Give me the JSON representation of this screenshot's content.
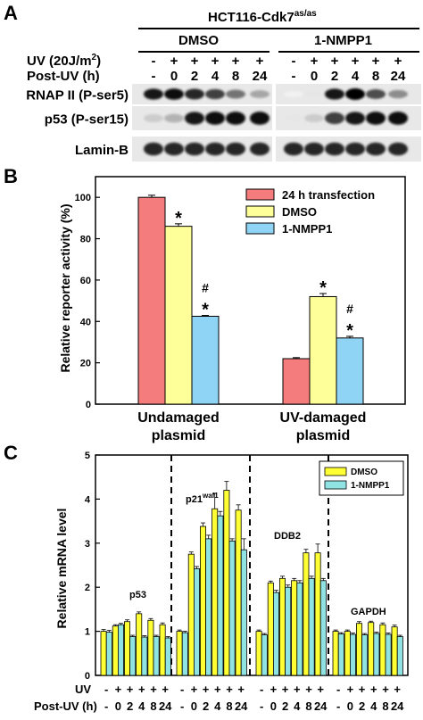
{
  "panel_a": {
    "label": "A",
    "cell_line": "HCT116-Cdk7",
    "cell_line_superscript": "as/as",
    "groups": [
      "DMSO",
      "1-NMPP1"
    ],
    "uv_row_label": "UV (20J/m",
    "uv_row_sup": "2",
    "uv_row_end": ")",
    "post_uv_label": "Post-UV (h)",
    "uv_signs": [
      "-",
      "+",
      "+",
      "+",
      "+",
      "+",
      "-",
      "+",
      "+",
      "+",
      "+",
      "+"
    ],
    "post_uv_values": [
      "-",
      "0",
      "2",
      "4",
      "8",
      "24",
      "-",
      "0",
      "2",
      "4",
      "8",
      "24"
    ],
    "blots": [
      {
        "label": "RNAP II (P-ser5)",
        "intensity": [
          0.9,
          0.95,
          0.85,
          0.75,
          0.55,
          0.35,
          0.05,
          0.1,
          0.9,
          1.0,
          0.7,
          0.45
        ]
      },
      {
        "label": "p53 (P-ser15)",
        "intensity": [
          0.2,
          0.3,
          0.9,
          0.95,
          0.95,
          0.95,
          0.1,
          0.2,
          0.75,
          0.9,
          0.95,
          0.95
        ]
      },
      {
        "label": "Lamin-B",
        "intensity": [
          0.85,
          0.85,
          0.85,
          0.85,
          0.85,
          0.85,
          0.85,
          0.85,
          0.85,
          0.85,
          0.85,
          0.85
        ]
      }
    ]
  },
  "panel_b": {
    "label": "B"
  },
  "panel_c": {
    "label": "C",
    "uv_label": "UV",
    "post_uv_label": "Post-UV (h)",
    "uv_signs": [
      "-",
      "+",
      "+",
      "+",
      "+",
      "+"
    ],
    "post_uv_values": [
      "-",
      "0",
      "2",
      "4",
      "8",
      "24"
    ]
  },
  "chart_data": [
    {
      "type": "bar",
      "ylabel": "Relative reporter activity (%)",
      "ylim": [
        0,
        110
      ],
      "yticks": [
        0,
        20,
        40,
        60,
        80,
        100
      ],
      "categories": [
        "Undamaged plasmid",
        "UV-damaged plasmid"
      ],
      "category_lines": [
        [
          "Undamaged",
          "plasmid"
        ],
        [
          "UV-damaged",
          "plasmid"
        ]
      ],
      "series": [
        {
          "name": "24 h transfection",
          "values": [
            100,
            22
          ],
          "errors": [
            1.0,
            0.5
          ],
          "color": "#f47c7c"
        },
        {
          "name": "DMSO",
          "values": [
            86,
            52
          ],
          "errors": [
            1.2,
            1.5
          ],
          "color": "#ffff99"
        },
        {
          "name": "1-NMPP1",
          "values": [
            42.5,
            32
          ],
          "errors": [
            0.4,
            0.8
          ],
          "color": "#8fd3f5"
        }
      ],
      "annotations": [
        {
          "category": 0,
          "series": 1,
          "marks": [
            "*"
          ]
        },
        {
          "category": 0,
          "series": 2,
          "marks": [
            "#",
            "*"
          ]
        },
        {
          "category": 1,
          "series": 1,
          "marks": [
            "*"
          ]
        },
        {
          "category": 1,
          "series": 2,
          "marks": [
            "#",
            "*"
          ]
        }
      ],
      "legend_position": "top-right"
    },
    {
      "type": "bar",
      "ylabel": "Relative mRNA  level",
      "ylim": [
        0,
        5
      ],
      "yticks": [
        0,
        1,
        2,
        3,
        4,
        5
      ],
      "legend_position": "top-right",
      "series_names": [
        "DMSO",
        "1-NMPP1"
      ],
      "series_colors": [
        "#ffff33",
        "#8fe3e3"
      ],
      "groups": [
        {
          "name": "p53",
          "name_sup": "",
          "DMSO": [
            1.0,
            1.12,
            1.22,
            1.4,
            1.25,
            1.15
          ],
          "NMPP1": [
            0.98,
            1.15,
            0.88,
            0.87,
            0.88,
            0.85
          ],
          "DMSO_err": [
            0.04,
            0.03,
            0.04,
            0.04,
            0.04,
            0.04
          ],
          "NMPP1_err": [
            0.04,
            0.03,
            0.03,
            0.03,
            0.03,
            0.03
          ]
        },
        {
          "name": "p21",
          "name_sup": "waf1",
          "DMSO": [
            1.0,
            2.75,
            3.38,
            3.78,
            4.2,
            3.75
          ],
          "NMPP1": [
            0.97,
            2.42,
            3.1,
            3.62,
            3.05,
            2.85
          ],
          "DMSO_err": [
            0.03,
            0.05,
            0.08,
            0.35,
            0.2,
            0.12
          ],
          "NMPP1_err": [
            0.03,
            0.05,
            0.08,
            0.1,
            0.05,
            0.25
          ]
        },
        {
          "name": "DDB2",
          "name_sup": "",
          "DMSO": [
            1.0,
            2.1,
            2.2,
            2.15,
            2.78,
            2.78
          ],
          "NMPP1": [
            0.92,
            1.88,
            2.0,
            2.1,
            2.2,
            2.15
          ],
          "DMSO_err": [
            0.03,
            0.04,
            0.05,
            0.05,
            0.08,
            0.2
          ],
          "NMPP1_err": [
            0.03,
            0.05,
            0.05,
            0.05,
            0.05,
            0.05
          ]
        },
        {
          "name": "GAPDH",
          "name_sup": "",
          "DMSO": [
            1.0,
            1.0,
            1.18,
            1.2,
            1.15,
            1.1
          ],
          "NMPP1": [
            0.94,
            0.93,
            0.92,
            0.95,
            0.93,
            0.88
          ],
          "DMSO_err": [
            0.03,
            0.03,
            0.04,
            0.03,
            0.04,
            0.04
          ],
          "NMPP1_err": [
            0.03,
            0.03,
            0.03,
            0.03,
            0.03,
            0.03
          ]
        }
      ]
    }
  ]
}
